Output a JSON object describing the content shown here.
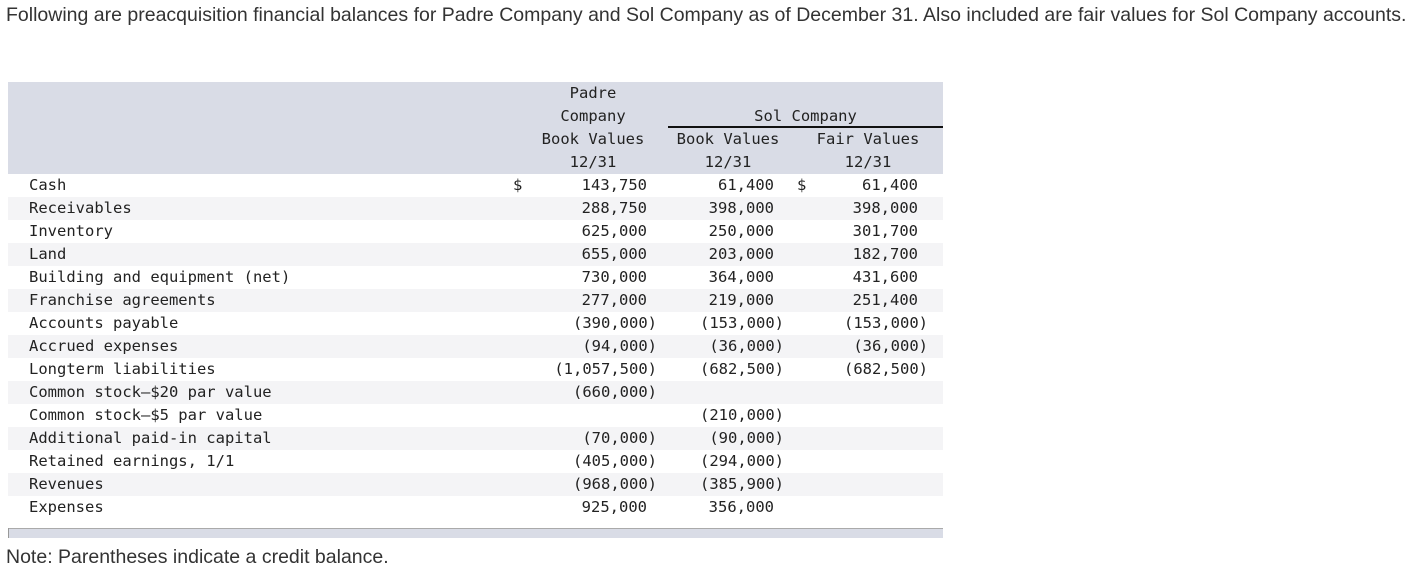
{
  "intro": "Following are preacquisition financial balances for Padre Company and Sol Company as of December 31. Also included are fair values for Sol Company accounts.",
  "header": {
    "padre": [
      "Padre",
      "Company",
      "Book Values",
      "12/31"
    ],
    "sol_group": "Sol Company",
    "sol_book": [
      "Book Values",
      "12/31"
    ],
    "sol_fair": [
      "Fair Values",
      "12/31"
    ]
  },
  "currency_symbol": "$",
  "rows": [
    {
      "label": "Cash",
      "padre": "143,750",
      "sol_book": "61,400",
      "sol_fair": "61,400",
      "dollar": true
    },
    {
      "label": "Receivables",
      "padre": "288,750",
      "sol_book": "398,000",
      "sol_fair": "398,000"
    },
    {
      "label": "Inventory",
      "padre": "625,000",
      "sol_book": "250,000",
      "sol_fair": "301,700"
    },
    {
      "label": "Land",
      "padre": "655,000",
      "sol_book": "203,000",
      "sol_fair": "182,700"
    },
    {
      "label": "Building and equipment (net)",
      "padre": "730,000",
      "sol_book": "364,000",
      "sol_fair": "431,600"
    },
    {
      "label": "Franchise agreements",
      "padre": "277,000",
      "sol_book": "219,000",
      "sol_fair": "251,400"
    },
    {
      "label": "Accounts payable",
      "padre": "(390,000)",
      "sol_book": "(153,000)",
      "sol_fair": "(153,000)"
    },
    {
      "label": "Accrued expenses",
      "padre": "(94,000)",
      "sol_book": "(36,000)",
      "sol_fair": "(36,000)"
    },
    {
      "label": "Longterm liabilities",
      "padre": "(1,057,500)",
      "sol_book": "(682,500)",
      "sol_fair": "(682,500)"
    },
    {
      "label": "Common stock—$20 par value",
      "padre": "(660,000)",
      "sol_book": "",
      "sol_fair": ""
    },
    {
      "label": "Common stock—$5 par value",
      "padre": "",
      "sol_book": "(210,000)",
      "sol_fair": ""
    },
    {
      "label": "Additional paid-in capital",
      "padre": "(70,000)",
      "sol_book": "(90,000)",
      "sol_fair": ""
    },
    {
      "label": "Retained earnings, 1/1",
      "padre": "(405,000)",
      "sol_book": "(294,000)",
      "sol_fair": ""
    },
    {
      "label": "Revenues",
      "padre": "(968,000)",
      "sol_book": "(385,900)",
      "sol_fair": ""
    },
    {
      "label": "Expenses",
      "padre": "925,000",
      "sol_book": "356,000",
      "sol_fair": ""
    }
  ],
  "note": "Note: Parentheses indicate a credit balance."
}
